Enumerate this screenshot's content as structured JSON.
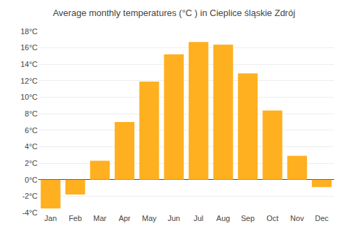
{
  "chart_data": {
    "type": "bar",
    "title": "Average monthly temperatures (°C ) in Cieplice śląskie Zdrój",
    "categories": [
      "Jan",
      "Feb",
      "Mar",
      "Apr",
      "May",
      "Jun",
      "Jul",
      "Aug",
      "Sep",
      "Oct",
      "Nov",
      "Dec"
    ],
    "values": [
      -3.5,
      -1.8,
      2.3,
      7.0,
      11.9,
      15.2,
      16.7,
      16.4,
      12.9,
      8.4,
      2.9,
      -0.9
    ],
    "color": "#FFB020",
    "ylim": [
      -4,
      18
    ],
    "yticks": [
      {
        "value": -4,
        "label": "-4°C"
      },
      {
        "value": -2,
        "label": "-2°C"
      },
      {
        "value": 0,
        "label": "0°C"
      },
      {
        "value": 2,
        "label": "2°C"
      },
      {
        "value": 4,
        "label": "4°C"
      },
      {
        "value": 6,
        "label": "6°C"
      },
      {
        "value": 8,
        "label": "8°C"
      },
      {
        "value": 10,
        "label": "10°C"
      },
      {
        "value": 12,
        "label": "12°C"
      },
      {
        "value": 14,
        "label": "14°C"
      },
      {
        "value": 16,
        "label": "16°C"
      },
      {
        "value": 18,
        "label": "18°C"
      }
    ],
    "grid": true
  }
}
